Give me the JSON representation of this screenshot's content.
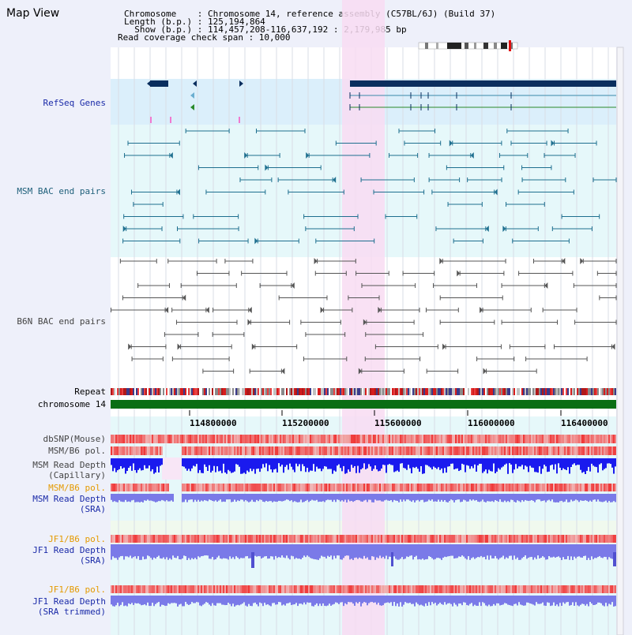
{
  "header": {
    "title": "Map View",
    "info_lines": [
      "Chromosome    : Chromosome 14, reference assembly (C57BL/6J) (Build 37)",
      "Length (b.p.) : 125,194,864",
      "  Show (b.p.) : 114,457,208-116,637,192 : 2,179,985 bp",
      "Read coverage check span : 10,000"
    ]
  },
  "tracks": {
    "refseq": "RefSeq Genes",
    "msm_bac": "MSM BAC end pairs",
    "b6n_bac": "B6N BAC end pairs",
    "repeat": "Repeat",
    "chromosome": "chromosome 14",
    "dbsnp": "dbSNP(Mouse)",
    "msm_b6_pol_1": "MSM/B6 pol.",
    "msm_depth_cap_1": "MSM Read Depth",
    "msm_depth_cap_2": "(Capillary)",
    "msm_b6_pol_2": "MSM/B6 pol.",
    "msm_depth_sra_1": "MSM Read Depth",
    "msm_depth_sra_2": "(SRA)",
    "jf1_b6_pol_1": "JF1/B6 pol.",
    "jf1_depth_sra_1": "JF1 Read Depth",
    "jf1_depth_sra_2": "(SRA)",
    "jf1_b6_pol_2": "JF1/B6 pol.",
    "jf1_depth_trim_1": "JF1 Read Depth",
    "jf1_depth_trim_2": "(SRA trimmed)"
  },
  "axis": {
    "ticks": [
      "114800000",
      "115200000",
      "115600000",
      "116000000",
      "116400000"
    ]
  },
  "colors": {
    "panel_bg": "#eef0fa",
    "refseq_bg": "#dbeffb",
    "msm_bg": "#e6f8fa",
    "highlight": "#f8dcf2",
    "gene_navy": "#0a2e5e",
    "bac_teal": "#1e6f8f",
    "bac_grey": "#555555",
    "chromosome_green": "#0a6e14",
    "depth_blue": "#1a1aee",
    "depth_lavender": "#7a7ae8",
    "snp_red": "#f04a4a"
  }
}
